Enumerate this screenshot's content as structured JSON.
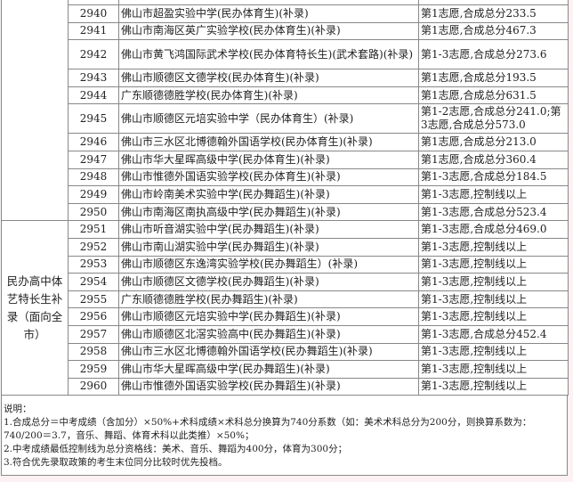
{
  "groups": [
    {
      "label": ""
    },
    {
      "label": "民办高中体艺特长生补录（面向全市）"
    }
  ],
  "rows": [
    {
      "no": "",
      "school": "",
      "note": ""
    },
    {
      "no": "2940",
      "school": "佛山市超盈实验中学(民办体育生)(补录)",
      "note": "第1志愿,合成总分233.5"
    },
    {
      "no": "2941",
      "school": "佛山市南海区英广实验学校(民办体育生)(补录)",
      "note": "第1志愿,合成总分467.3"
    },
    {
      "no": "2942",
      "school": "佛山市黄飞鸿国际武术学校(民办体育特长生)(武术套路)(补录)",
      "note": "第1-3志愿,合成总分273.6"
    },
    {
      "no": "2943",
      "school": "佛山市顺德区文德学校(民办体育生)(补录)",
      "note": "第1志愿,合成总分193.5"
    },
    {
      "no": "2944",
      "school": "广东顺德德胜学校(民办体育生)(补录)",
      "note": "第1志愿,合成总分631.5"
    },
    {
      "no": "2945",
      "school": "佛山市顺德区元培实验中学（民办体育生）(补录)",
      "note": "第1-2志愿,合成总分241.0;第3志愿,合成总分573.0"
    },
    {
      "no": "2946",
      "school": "佛山市三水区北博德翰外国语学校(民办体育生)(补录)",
      "note": "第1志愿,合成总分213.0"
    },
    {
      "no": "2947",
      "school": "佛山市华大星晖高级中学(民办体育生)(补录)",
      "note": "第1志愿,合成总分360.4"
    },
    {
      "no": "2948",
      "school": "佛山市惟德外国语实验学校(民办体育生)(补录)",
      "note": "第1-3志愿,合成总分184.5"
    },
    {
      "no": "2949",
      "school": "佛山市岭南美术实验中学(民办舞蹈生)(补录)",
      "note": "第1-3志愿,控制线以上"
    },
    {
      "no": "2950",
      "school": "佛山市南海区南执高级中学(民办舞蹈生)(补录)",
      "note": "第1-3志愿,合成总分523.4"
    },
    {
      "no": "2951",
      "school": "佛山市听音湖实验中学(民办舞蹈生)(补录)",
      "note": "第1-3志愿,合成总分469.0"
    },
    {
      "no": "2952",
      "school": "佛山市南山湖实验中学(民办舞蹈生)(补录)",
      "note": "第1-3志愿,控制线以上"
    },
    {
      "no": "2953",
      "school": "佛山市顺德区东逸湾实验学校(民办舞蹈生）(补录)",
      "note": "第1-3志愿,控制线以上"
    },
    {
      "no": "2954",
      "school": "佛山市顺德区文德学校(民办舞蹈生)(补录)",
      "note": "第1-3志愿,控制线以上"
    },
    {
      "no": "2955",
      "school": "广东顺德德胜学校(民办舞蹈生)(补录)",
      "note": "第1-3志愿,控制线以上"
    },
    {
      "no": "2956",
      "school": "佛山市顺德区元培实验中学(民办舞蹈生)(补录)",
      "note": "第1-3志愿,控制线以上"
    },
    {
      "no": "2957",
      "school": "佛山市顺德区北滘实验高中(民办舞蹈生)(补录)",
      "note": "第1-3志愿,合成总分452.4"
    },
    {
      "no": "2958",
      "school": "佛山市三水区北博德翰外国语学校(民办舞蹈生)(补录)",
      "note": "第1-3志愿,控制线以上"
    },
    {
      "no": "2959",
      "school": "佛山市华大星晖高级中学(民办舞蹈生)(补录)",
      "note": "第1-3志愿,控制线以上"
    },
    {
      "no": "2960",
      "school": "佛山市惟德外国语实验学校(民办舞蹈生)(补录)",
      "note": "第1-3志愿,控制线以上"
    }
  ],
  "notes": {
    "heading": "说明：",
    "lines": [
      "1.合成总分＝中考成绩（含加分）×50%+术科成绩×术科总分换算为740分系数（如：美术术科总分为200分，则换算系数为：",
      "740/200＝3.7，音乐、舞蹈、体育术科以此类推）×50%；",
      "2.中考成绩最低控制线为总分资格线：美术、音乐、舞蹈为400分，体育为300分；",
      "3.符合优先录取政策的考生末位同分比较时优先投档。"
    ]
  }
}
